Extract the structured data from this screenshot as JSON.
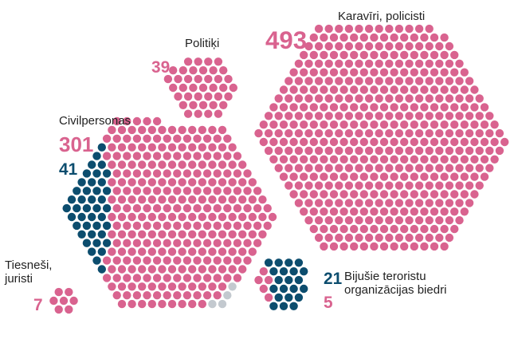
{
  "chart_data": {
    "type": "dot-hexagon",
    "groups": [
      {
        "label": "Karavīri, policisti",
        "segments": [
          {
            "value": 493,
            "color": "#d9638f"
          }
        ]
      },
      {
        "label": "Politiķi",
        "segments": [
          {
            "value": 39,
            "color": "#d9638f"
          }
        ]
      },
      {
        "label": "Civilpersonas",
        "segments": [
          {
            "value": 301,
            "color": "#d9638f"
          },
          {
            "value": 41,
            "color": "#0c4d6e"
          },
          {
            "value": 4,
            "color": "#c3c9cf"
          }
        ]
      },
      {
        "label": "Tiesneši, juristi",
        "segments": [
          {
            "value": 7,
            "color": "#d9638f"
          }
        ]
      },
      {
        "label": "Bijušie teroristu organizācijas biedri",
        "segments": [
          {
            "value": 21,
            "color": "#0c4d6e"
          },
          {
            "value": 5,
            "color": "#d9638f"
          }
        ]
      }
    ]
  }
}
